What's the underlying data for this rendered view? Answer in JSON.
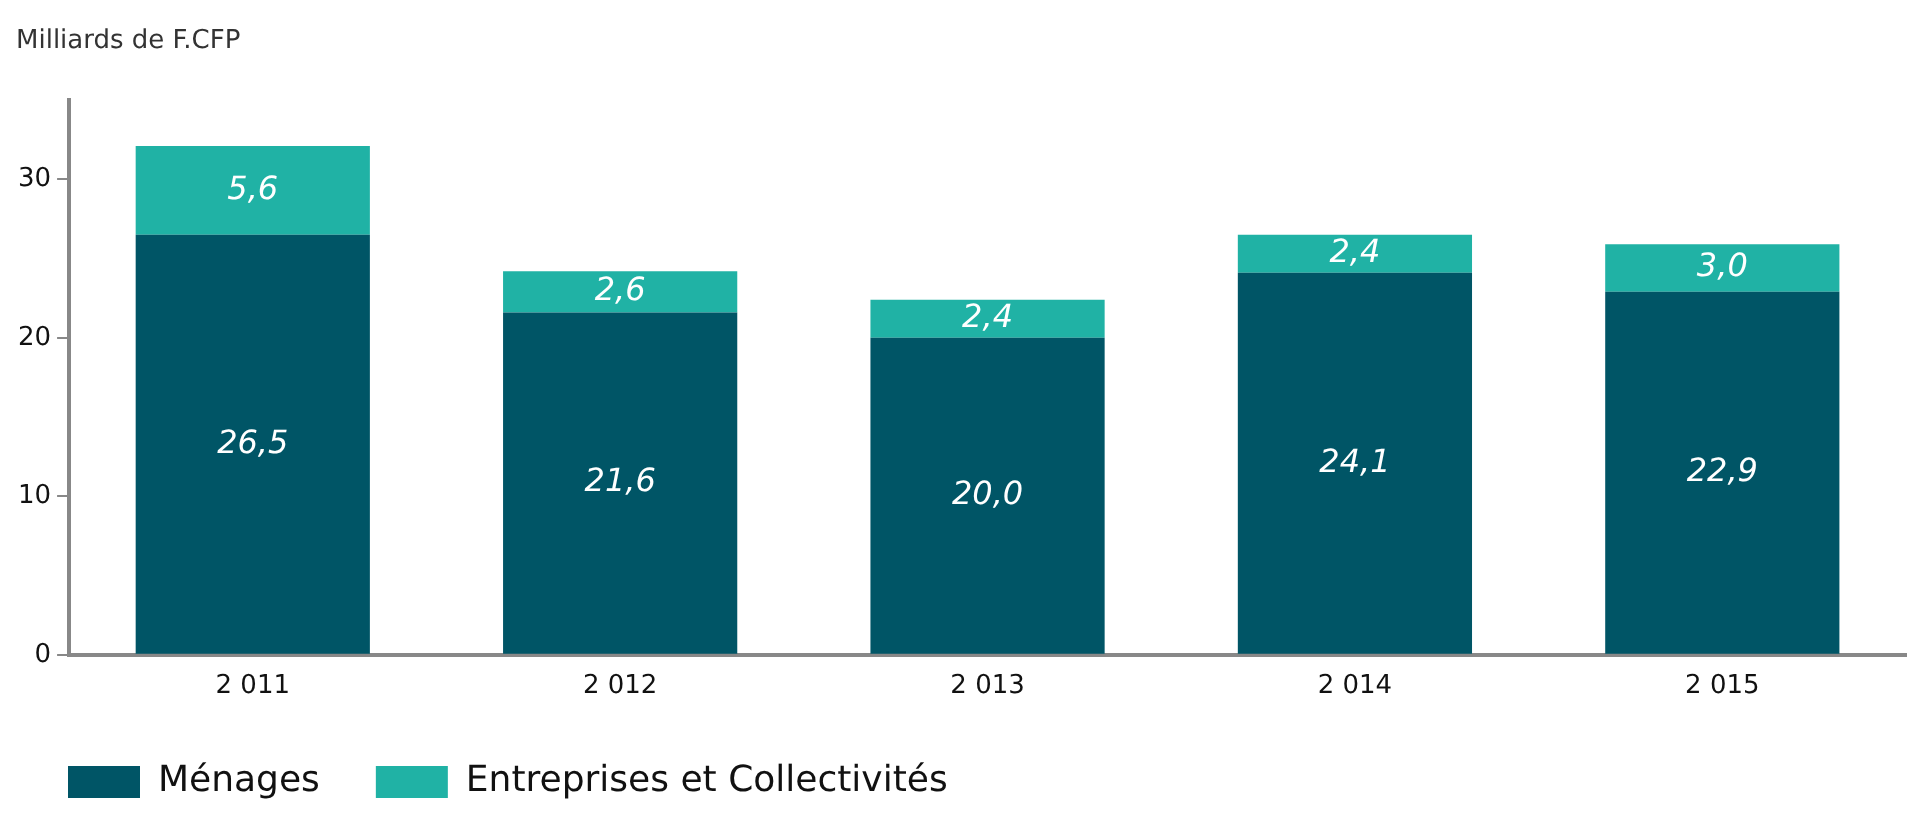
{
  "chart_data": {
    "type": "bar",
    "stacked": true,
    "ylabel": "Milliards de F.CFP",
    "categories": [
      "2 011",
      "2 012",
      "2 013",
      "2 014",
      "2 015"
    ],
    "series": [
      {
        "name": "Ménages",
        "color": "#005566",
        "values": [
          26.5,
          21.6,
          20.0,
          24.1,
          22.9
        ],
        "value_labels": [
          "26,5",
          "21,6",
          "20,0",
          "24,1",
          "22,9"
        ]
      },
      {
        "name": "Entreprises et Collectivités",
        "color": "#20b2a5",
        "values": [
          5.6,
          2.6,
          2.4,
          2.4,
          3.0
        ],
        "value_labels": [
          "5,6",
          "2,6",
          "2,4",
          "2,4",
          "3,0"
        ]
      }
    ],
    "ylim": [
      0,
      35
    ],
    "yticks": [
      0,
      10,
      20,
      30
    ],
    "grid": false,
    "legend": "bottom left"
  }
}
